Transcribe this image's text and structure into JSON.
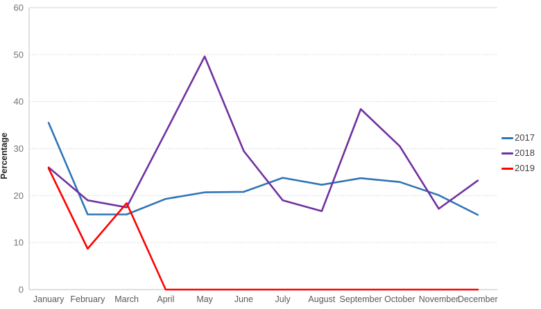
{
  "chart_data": {
    "type": "line",
    "title": "",
    "xlabel": "",
    "ylabel": "Percentage",
    "ylim": [
      0,
      60
    ],
    "yticks": [
      0,
      10,
      20,
      30,
      40,
      50,
      60
    ],
    "grid": true,
    "legend_position": "right",
    "categories": [
      "January",
      "February",
      "March",
      "April",
      "May",
      "June",
      "July",
      "August",
      "September",
      "October",
      "November",
      "December"
    ],
    "series": [
      {
        "name": "2017",
        "color": "#2E75B6",
        "values": [
          35.5,
          16.0,
          16.0,
          19.3,
          20.7,
          20.8,
          23.8,
          22.3,
          23.7,
          22.9,
          20.1,
          15.9
        ]
      },
      {
        "name": "2018",
        "color": "#7030A0",
        "values": [
          26.0,
          19.0,
          17.5,
          33.5,
          49.6,
          29.5,
          19.0,
          16.7,
          38.4,
          30.5,
          17.2,
          23.2
        ]
      },
      {
        "name": "2019",
        "color": "#FE0000",
        "values": [
          25.8,
          8.7,
          18.4,
          0,
          0,
          0,
          0,
          0,
          0,
          0,
          0,
          0
        ]
      }
    ],
    "colors": {
      "gridline": "#d9d9d9",
      "top_border": "#d6d6d6",
      "x_axis_line": "#bfbfbf",
      "y_axis_line": "#cbb8da",
      "tick_text": "#757575",
      "category_text": "#595959",
      "legend_text": "#404040"
    }
  }
}
